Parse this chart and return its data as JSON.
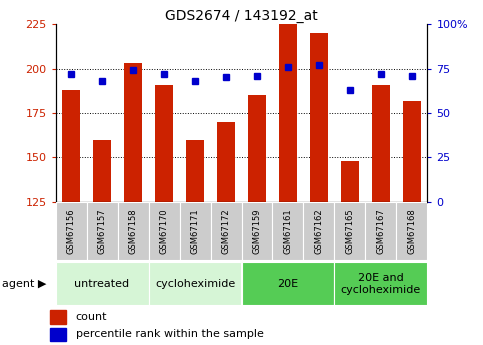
{
  "title": "GDS2674 / 143192_at",
  "samples": [
    "GSM67156",
    "GSM67157",
    "GSM67158",
    "GSM67170",
    "GSM67171",
    "GSM67172",
    "GSM67159",
    "GSM67161",
    "GSM67162",
    "GSM67165",
    "GSM67167",
    "GSM67168"
  ],
  "counts": [
    188,
    160,
    203,
    191,
    160,
    170,
    185,
    225,
    220,
    148,
    191,
    182
  ],
  "percentile_ranks": [
    72,
    68,
    74,
    72,
    68,
    70,
    71,
    76,
    77,
    63,
    72,
    71
  ],
  "ylim_left": [
    125,
    225
  ],
  "ylim_right": [
    0,
    100
  ],
  "yticks_left": [
    125,
    150,
    175,
    200,
    225
  ],
  "yticks_right": [
    0,
    25,
    50,
    75,
    100
  ],
  "ytick_labels_right": [
    "0",
    "25",
    "50",
    "75",
    "100%"
  ],
  "bar_color": "#cc2200",
  "dot_color": "#0000cc",
  "groups": [
    {
      "label": "untreated",
      "start": 0,
      "end": 3,
      "color": "#d6f5d6"
    },
    {
      "label": "cycloheximide",
      "start": 3,
      "end": 6,
      "color": "#d6f5d6"
    },
    {
      "label": "20E",
      "start": 6,
      "end": 9,
      "color": "#55cc55"
    },
    {
      "label": "20E and\ncycloheximide",
      "start": 9,
      "end": 12,
      "color": "#55cc55"
    }
  ],
  "agent_label": "agent",
  "legend_count_label": "count",
  "legend_pct_label": "percentile rank within the sample",
  "tick_bg_color": "#cccccc",
  "sample_label_fontsize": 6.0,
  "group_label_fontsize": 8.0,
  "ytick_fontsize": 8,
  "title_fontsize": 10
}
